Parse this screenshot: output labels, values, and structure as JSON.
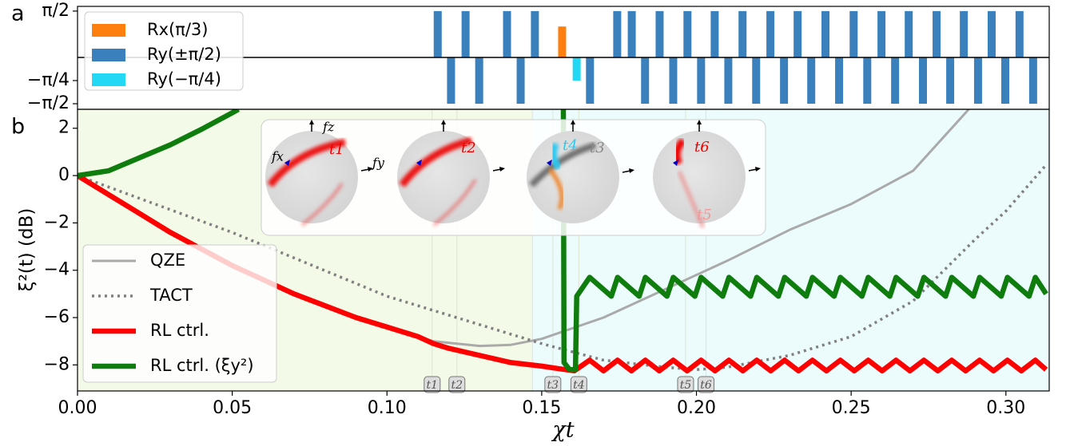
{
  "chart_data": [
    {
      "type": "bar",
      "panel_label": "a",
      "xlim": [
        0,
        0.314
      ],
      "ylim": [
        -1.76,
        1.73
      ],
      "yticks": [
        {
          "value": 1.5708,
          "label": "π/2"
        },
        {
          "value": -0.7854,
          "label": "−π/4"
        },
        {
          "value": -1.5708,
          "label": "−π/2"
        }
      ],
      "legend": "upper left",
      "series": [
        {
          "name": "Rx(π/3)",
          "color": "#ff7f0e",
          "x": [
            0.1566
          ],
          "values": [
            1.0472
          ]
        },
        {
          "name": "Ry(±π/2)",
          "color": "#3a80bd",
          "x": [
            0.1164,
            0.1207,
            0.1254,
            0.1298,
            0.1388,
            0.1432,
            0.1478,
            0.1656,
            0.1744,
            0.1791,
            0.1834,
            0.1881,
            0.1925,
            0.1971,
            0.2015,
            0.2059,
            0.2103,
            0.2149,
            0.2193,
            0.2239,
            0.2283,
            0.2327,
            0.2371,
            0.2417,
            0.2461,
            0.2508,
            0.2552,
            0.2598,
            0.2642,
            0.2686,
            0.2732,
            0.2776,
            0.282,
            0.2864,
            0.291,
            0.2954,
            0.2998,
            0.3044,
            0.3088
          ],
          "values": [
            1.5708,
            -1.5708,
            1.5708,
            -1.5708,
            1.5708,
            -1.5708,
            1.5708,
            -1.5708,
            1.5708,
            1.5708,
            -1.5708,
            1.5708,
            -1.5708,
            1.5708,
            -1.5708,
            1.5708,
            -1.5708,
            1.5708,
            -1.5708,
            1.5708,
            -1.5708,
            1.5708,
            -1.5708,
            1.5708,
            -1.5708,
            1.5708,
            -1.5708,
            1.5708,
            -1.5708,
            1.5708,
            -1.5708,
            1.5708,
            -1.5708,
            1.5708,
            -1.5708,
            1.5708,
            -1.5708,
            1.5708,
            -1.5708
          ]
        },
        {
          "name": "Ry(−π/4)",
          "color": "#22d8f5",
          "x": [
            0.1613
          ],
          "values": [
            -0.7854
          ]
        }
      ]
    },
    {
      "type": "line",
      "panel_label": "b",
      "x_label": "χt",
      "y_label": "ξ²(t) (dB)",
      "xlim": [
        0,
        0.314
      ],
      "ylim": [
        -9.1,
        2.8
      ],
      "xticks": [
        {
          "value": 0,
          "label": "0.00"
        },
        0.05,
        {
          "value": 0.1,
          "label": "0.10"
        },
        0.15,
        {
          "value": 0.2,
          "label": "0.20"
        },
        0.25,
        {
          "value": 0.3,
          "label": "0.30"
        }
      ],
      "yticks": [
        2,
        0,
        {
          "value": -2,
          "label": "−2"
        },
        {
          "value": -4,
          "label": "−4"
        },
        {
          "value": -6,
          "label": "−6"
        },
        {
          "value": -8,
          "label": "−8"
        }
      ],
      "legend": "lower left",
      "shaded_regions": [
        {
          "xlim": [
            0,
            0.147
          ],
          "color": "#f4fae8"
        },
        {
          "xlim": [
            0.147,
            0.314
          ],
          "color": "#ecfcfd"
        }
      ],
      "annotations": [
        {
          "text": "t1",
          "x": 0.1146
        },
        {
          "text": "t2",
          "x": 0.1226
        },
        {
          "text": "t3",
          "x": 0.1536
        },
        {
          "text": "t4",
          "x": 0.162
        },
        {
          "text": "t5",
          "x": 0.1965
        },
        {
          "text": "t6",
          "x": 0.2031
        }
      ],
      "inset": {
        "axis_labels": [
          "fz",
          "fy",
          "fx"
        ],
        "time_labels": [
          "t1",
          "t2",
          "t4",
          "t3",
          "t6",
          "t5"
        ]
      },
      "series": [
        {
          "name": "QZE",
          "color": "#aaaaaa",
          "style": "solid",
          "x": [
            0,
            0.02,
            0.04,
            0.06,
            0.08,
            0.1,
            0.115,
            0.13,
            0.14,
            0.15,
            0.17,
            0.19,
            0.21,
            0.23,
            0.25,
            0.27,
            0.288
          ],
          "values": [
            0,
            -1.6,
            -3.1,
            -4.4,
            -5.5,
            -6.4,
            -7.0,
            -7.2,
            -7.15,
            -6.9,
            -6.0,
            -4.8,
            -3.6,
            -2.3,
            -1.2,
            0.2,
            2.8
          ]
        },
        {
          "name": "TACT",
          "color": "#808080",
          "style": "dotted",
          "x": [
            0,
            0.05,
            0.1,
            0.15,
            0.17,
            0.19,
            0.2,
            0.21,
            0.23,
            0.25,
            0.27,
            0.29,
            0.3,
            0.313
          ],
          "values": [
            0,
            -2.4,
            -5.1,
            -7.1,
            -7.8,
            -8.1,
            -8.2,
            -8.1,
            -7.6,
            -6.8,
            -5.3,
            -2.7,
            -1.5,
            0.45
          ]
        },
        {
          "name": "RL ctrl.",
          "color": "#ff0000",
          "style": "thick",
          "x": [
            0,
            0.01,
            0.02,
            0.03,
            0.04,
            0.05,
            0.06,
            0.07,
            0.08,
            0.09,
            0.1,
            0.11,
            0.115,
            0.12,
            0.13,
            0.14,
            0.15,
            0.155,
            0.1605,
            0.1655,
            0.17,
            0.1745,
            0.179,
            0.1835,
            0.188,
            0.1925,
            0.197,
            0.2015,
            0.206,
            0.2105,
            0.215,
            0.2195,
            0.224,
            0.2285,
            0.233,
            0.2375,
            0.242,
            0.2465,
            0.251,
            0.2555,
            0.26,
            0.2645,
            0.269,
            0.2735,
            0.278,
            0.2825,
            0.287,
            0.2915,
            0.296,
            0.3005,
            0.305,
            0.3095,
            0.313
          ],
          "values": [
            0,
            -0.8,
            -1.6,
            -2.4,
            -3.1,
            -3.8,
            -4.4,
            -5.0,
            -5.5,
            -6.0,
            -6.4,
            -6.8,
            -7.1,
            -7.3,
            -7.6,
            -7.9,
            -8.05,
            -8.15,
            -8.25,
            -7.8,
            -8.25,
            -7.8,
            -8.25,
            -7.8,
            -8.25,
            -7.8,
            -8.25,
            -7.8,
            -8.25,
            -7.8,
            -8.25,
            -7.8,
            -8.25,
            -7.8,
            -8.25,
            -7.8,
            -8.25,
            -7.8,
            -8.25,
            -7.8,
            -8.25,
            -7.8,
            -8.25,
            -7.8,
            -8.25,
            -7.8,
            -8.25,
            -7.8,
            -8.25,
            -7.8,
            -8.25,
            -7.8,
            -8.2
          ]
        },
        {
          "name": "RL ctrl. (ξy²)",
          "color": "#0e7d0e",
          "style": "thick",
          "x": [
            0,
            0.01,
            0.02,
            0.03,
            0.04,
            0.05,
            0.052,
            0.1,
            0.157,
            0.1572,
            0.159,
            0.1609,
            0.1613,
            0.1655,
            0.1725,
            0.1745,
            0.1815,
            0.1835,
            0.1905,
            0.1925,
            0.1995,
            0.2015,
            0.2085,
            0.2105,
            0.2175,
            0.2195,
            0.2265,
            0.2285,
            0.2355,
            0.2375,
            0.2445,
            0.2465,
            0.2535,
            0.2555,
            0.2625,
            0.2645,
            0.2715,
            0.2735,
            0.2805,
            0.2825,
            0.2895,
            0.2915,
            0.2985,
            0.3005,
            0.3075,
            0.3095,
            0.313
          ],
          "values": [
            0,
            0.2,
            0.75,
            1.3,
            1.95,
            2.65,
            2.8,
            null,
            2.8,
            -7.9,
            -8.2,
            -8.2,
            -5.1,
            -4.3,
            -5.1,
            -4.3,
            -5.1,
            -4.3,
            -5.1,
            -4.3,
            -5.1,
            -4.3,
            -5.1,
            -4.3,
            -5.1,
            -4.3,
            -5.1,
            -4.3,
            -5.1,
            -4.3,
            -5.1,
            -4.3,
            -5.1,
            -4.3,
            -5.1,
            -4.3,
            -5.1,
            -4.3,
            -5.1,
            -4.3,
            -5.1,
            -4.3,
            -5.1,
            -4.3,
            -5.1,
            -4.3,
            -5.0
          ]
        }
      ]
    }
  ]
}
